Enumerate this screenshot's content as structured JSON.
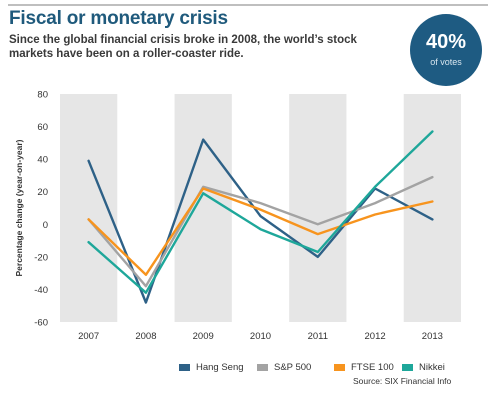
{
  "header": {
    "title": "Fiscal or monetary crisis",
    "subtitle": "Since the global financial crisis broke in 2008, the world’s stock markets have been on a roller-coaster ride."
  },
  "badge": {
    "value": "40%",
    "label": "of votes",
    "color": "#1e5b82"
  },
  "source": "Source:  SIX Financial Info",
  "chart_data": {
    "type": "line",
    "title": "",
    "xlabel": "",
    "ylabel": "Percentage change (year-on-year)",
    "categories": [
      "2007",
      "2008",
      "2009",
      "2010",
      "2011",
      "2012",
      "2013"
    ],
    "ylim": [
      -60,
      80
    ],
    "yticks": [
      80,
      60,
      40,
      20,
      0,
      -20,
      -40,
      -60
    ],
    "grid": "alternating vertical bands",
    "legend_position": "bottom",
    "band_color": "#e6e6e6",
    "series": [
      {
        "name": "Hang Seng",
        "color": "#2e6187",
        "values": [
          39,
          -48,
          52,
          5,
          -20,
          22,
          3
        ]
      },
      {
        "name": "S&P 500",
        "color": "#a3a3a3",
        "values": [
          3,
          -38,
          23,
          13,
          0,
          13,
          29
        ]
      },
      {
        "name": "FTSE 100",
        "color": "#f7941e",
        "values": [
          3,
          -31,
          22,
          9,
          -6,
          6,
          14
        ]
      },
      {
        "name": "Nikkei",
        "color": "#1ea79a",
        "values": [
          -11,
          -42,
          19,
          -3,
          -17,
          23,
          57
        ]
      }
    ]
  }
}
